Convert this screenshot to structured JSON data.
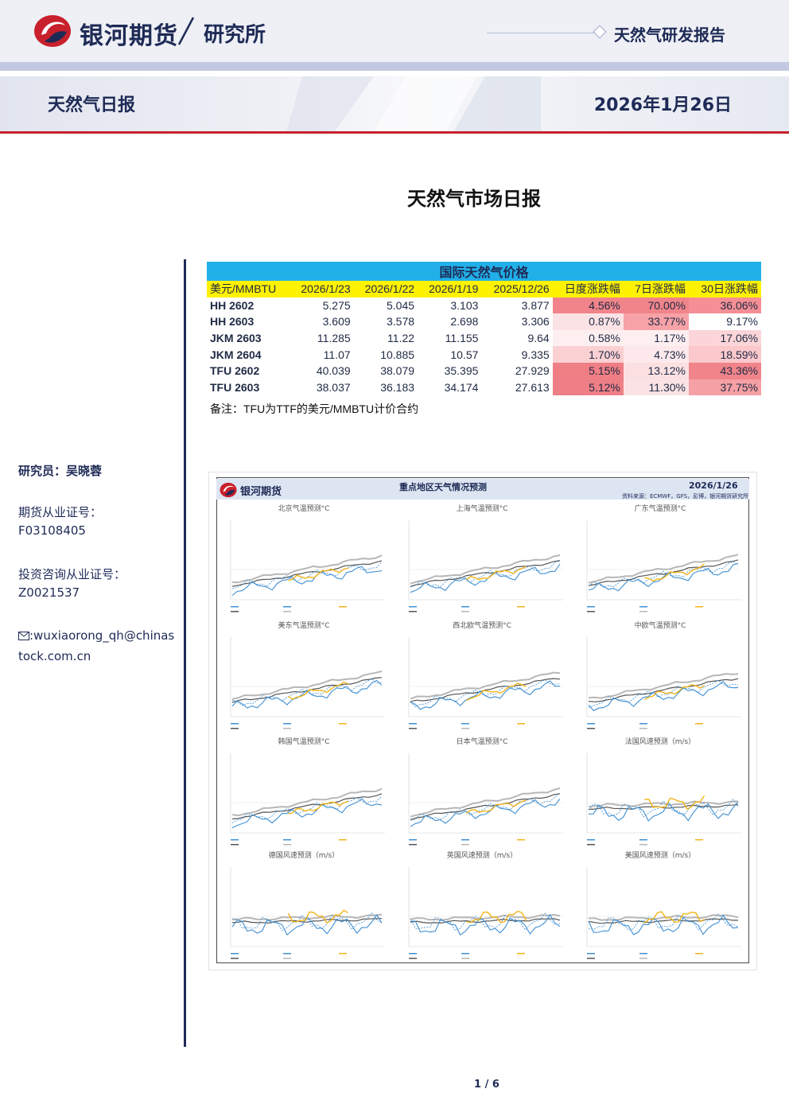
{
  "header": {
    "brand": "银河期货",
    "institute": "研究所",
    "report_type": "天然气研发报告",
    "daily_title": "天然气日报",
    "date": "2026年1月26日",
    "brand_red": "#c8202c",
    "brand_navy": "#1e2a56"
  },
  "main_title": "天然气市场日报",
  "sidebar": {
    "researcher": "研究员：吴晓蓉",
    "futures_cert_label": "期货从业证号：",
    "futures_cert": "F03108405",
    "invest_cert_label": "投资咨询从业证号：",
    "invest_cert": "Z0021537",
    "email_icon": "envelope-icon",
    "email_line1": ":wuxiaorong_qh@chinas",
    "email_line2": "tock.com.cn"
  },
  "price_table": {
    "caption": "国际天然气价格",
    "headers": [
      "美元/MMBTU",
      "2026/1/23",
      "2026/1/22",
      "2026/1/19",
      "2025/12/26",
      "日度涨跌幅",
      "7日涨跌幅",
      "30日涨跌幅"
    ],
    "rows": [
      {
        "name": "HH 2602",
        "v1": "5.275",
        "v2": "5.045",
        "v3": "3.103",
        "v4": "3.877",
        "d1": "4.56%",
        "d7": "70.00%",
        "d30": "36.06%"
      },
      {
        "name": "HH 2603",
        "v1": "3.609",
        "v2": "3.578",
        "v3": "2.698",
        "v4": "3.306",
        "d1": "0.87%",
        "d7": "33.77%",
        "d30": "9.17%"
      },
      {
        "name": "JKM 2603",
        "v1": "11.285",
        "v2": "11.22",
        "v3": "11.155",
        "v4": "9.64",
        "d1": "0.58%",
        "d7": "1.17%",
        "d30": "17.06%"
      },
      {
        "name": "JKM 2604",
        "v1": "11.07",
        "v2": "10.885",
        "v3": "10.57",
        "v4": "9.335",
        "d1": "1.70%",
        "d7": "4.73%",
        "d30": "18.59%"
      },
      {
        "name": "TFU 2602",
        "v1": "40.039",
        "v2": "38.079",
        "v3": "35.395",
        "v4": "27.929",
        "d1": "5.15%",
        "d7": "13.12%",
        "d30": "43.36%"
      },
      {
        "name": "TFU 2603",
        "v1": "38.037",
        "v2": "36.183",
        "v3": "34.174",
        "v4": "27.613",
        "d1": "5.12%",
        "d7": "11.30%",
        "d30": "37.75%"
      }
    ],
    "heat": [
      [
        "#f0848a",
        "#f0848a",
        "#f58f95"
      ],
      [
        "#fbe2e4",
        "#f6a2a7",
        "#ffffff"
      ],
      [
        "#fdeff0",
        "#fdeef0",
        "#fbd5d8"
      ],
      [
        "#fad0d3",
        "#fde9eb",
        "#fbc8cc"
      ],
      [
        "#ef7e85",
        "#fbe0e2",
        "#f0848a"
      ],
      [
        "#ef7f86",
        "#fbe3e5",
        "#f5a0a5"
      ]
    ],
    "note": "备注：TFU为TTF的美元/MMBTU计价合约"
  },
  "weather": {
    "brand": "银河期货",
    "title": "重点地区天气情况预测",
    "date": "2026/1/26",
    "subtitle": "资料来源：ECMWF，GFS，彭博，银河期货研究所",
    "panels": [
      "北京气温预测°C",
      "上海气温预测°C",
      "广东气温预测°C",
      "美东气温预测°C",
      "西北欧气温预测°C",
      "中欧气温预测°C",
      "韩国气温预测°C",
      "日本气温预测°C",
      "法国风速预测（m/s）",
      "德国风速预测（m/s）",
      "英国风速预测（m/s）",
      "美国风速预测（m/s）"
    ],
    "colors": {
      "blue": "#3f8fd2",
      "yellow": "#f2b51a",
      "dark": "#555555",
      "light": "#b7b7b7"
    }
  },
  "footer": {
    "page": "1 / 6"
  }
}
